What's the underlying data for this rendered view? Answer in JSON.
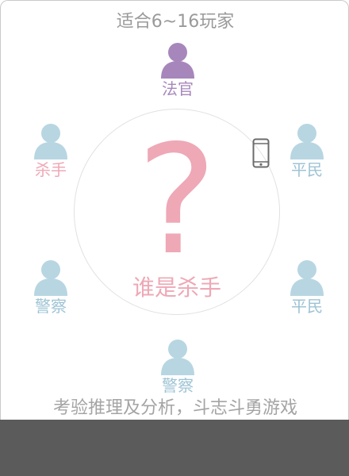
{
  "header": {
    "subtitle": "适合6~16玩家"
  },
  "center": {
    "question_mark": "?",
    "title": "谁是杀手"
  },
  "footer": {
    "tagline": "考验推理及分析，斗志斗勇游戏"
  },
  "colors": {
    "judge": "#a787bb",
    "killer_label": "#eea8b6",
    "player_avatar": "#b7d6e2",
    "player_label": "#9dc3d4",
    "accent_pink": "#eea8b6",
    "phone": "#6b6b6b"
  },
  "players": {
    "judge": {
      "label": "法官",
      "icon": "person-icon"
    },
    "killer": {
      "label": "杀手",
      "icon": "person-icon"
    },
    "civilian_1": {
      "label": "平民",
      "icon": "person-icon"
    },
    "police_1": {
      "label": "警察",
      "icon": "person-icon"
    },
    "civilian_2": {
      "label": "平民",
      "icon": "person-icon"
    },
    "police_2": {
      "label": "警察",
      "icon": "person-icon"
    }
  },
  "icons": {
    "phone": "phone-icon"
  }
}
